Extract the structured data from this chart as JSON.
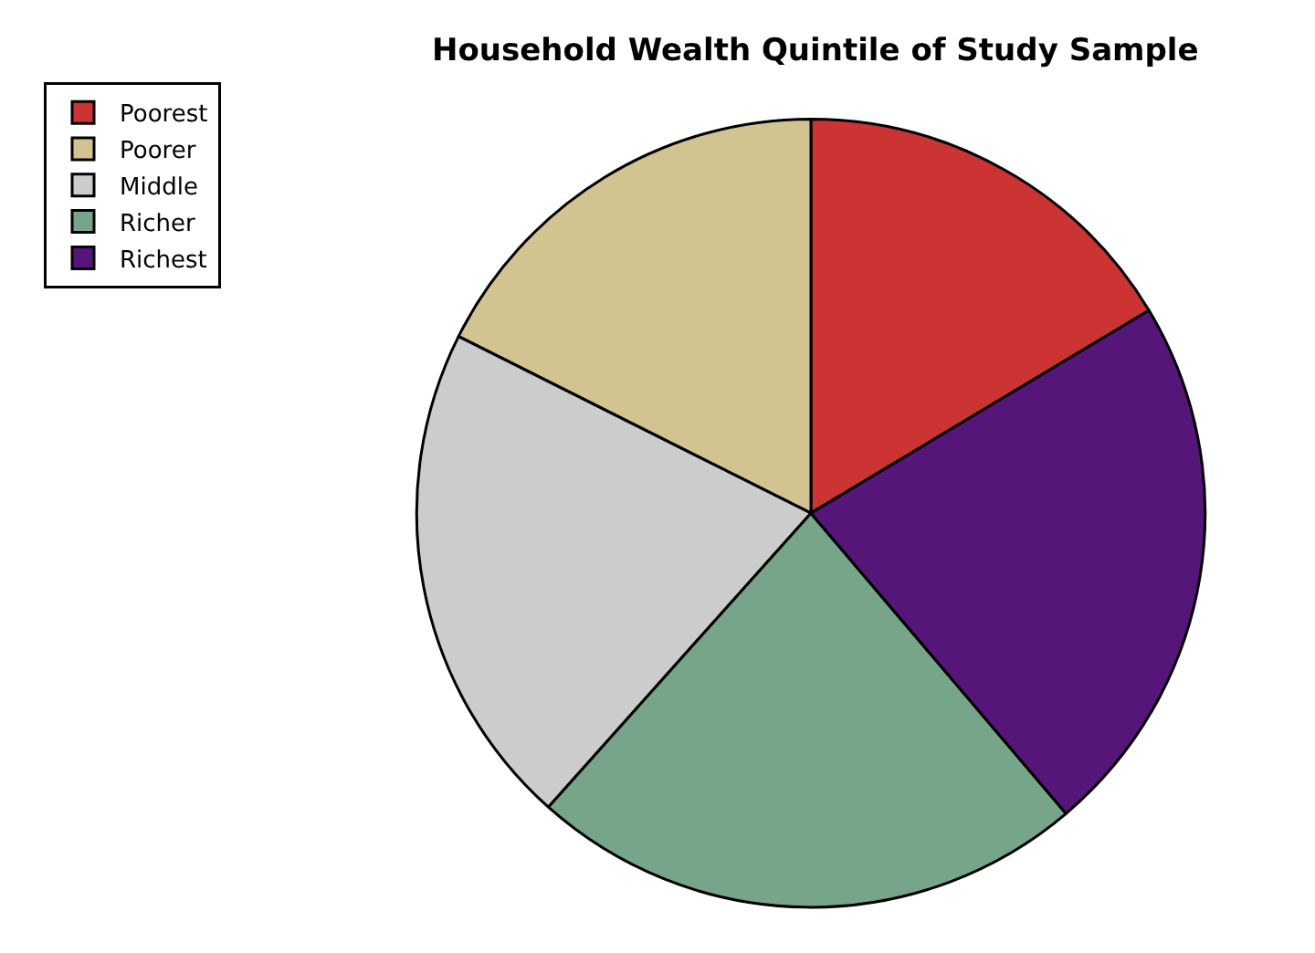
{
  "chart_data": {
    "type": "pie",
    "title": "Household Wealth Quintile of Study Sample",
    "categories": [
      "Poorest",
      "Poorer",
      "Middle",
      "Richer",
      "Richest"
    ],
    "values": [
      16.4,
      17.6,
      20.8,
      22.8,
      22.4
    ],
    "colors": [
      "#cc3333",
      "#d2c490",
      "#cccccc",
      "#77a58a",
      "#561679"
    ],
    "legend": "top left"
  }
}
